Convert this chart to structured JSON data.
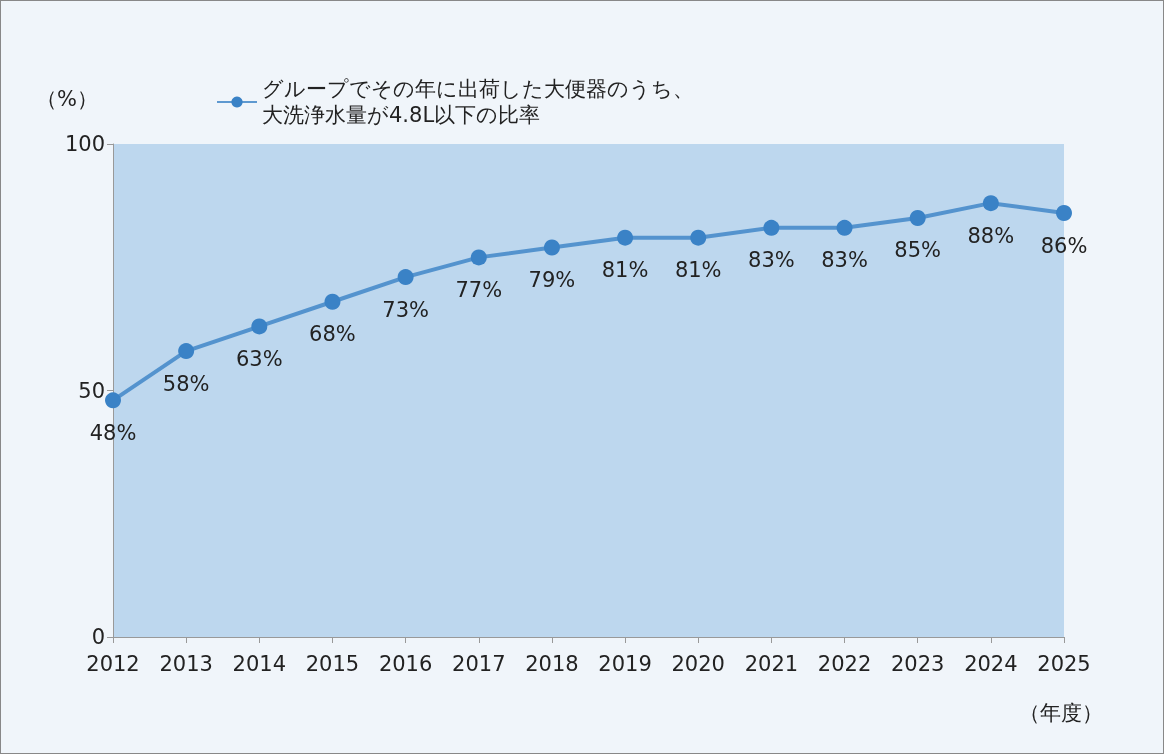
{
  "chart_data": {
    "type": "line",
    "xlabel": "（年度）",
    "ylabel": "（%）",
    "categories": [
      "2012",
      "2013",
      "2014",
      "2015",
      "2016",
      "2017",
      "2018",
      "2019",
      "2020",
      "2021",
      "2022",
      "2023",
      "2024",
      "2025"
    ],
    "series": [
      {
        "name": "グループでその年に出荷した大便器のうち、大洗浄水量が4.8L以下の比率",
        "color": "#3a82c6",
        "values": [
          48,
          58,
          63,
          68,
          73,
          77,
          79,
          81,
          81,
          83,
          83,
          85,
          88,
          86
        ],
        "value_labels": [
          "48%",
          "58%",
          "63%",
          "68%",
          "73%",
          "77%",
          "79%",
          "81%",
          "81%",
          "83%",
          "83%",
          "85%",
          "88%",
          "86%"
        ]
      }
    ],
    "ylim": [
      0,
      100
    ],
    "yticks": [
      0,
      50,
      100
    ],
    "legend": "top",
    "marker": "circle",
    "line_style": "solid"
  }
}
